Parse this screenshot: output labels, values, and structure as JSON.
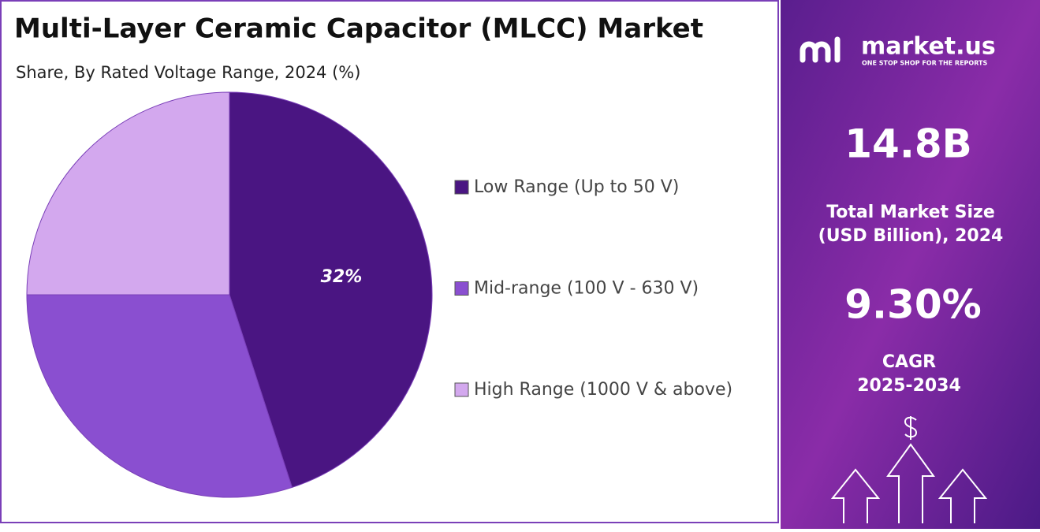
{
  "chart_data": {
    "type": "pie",
    "title": "Multi-Layer Ceramic Capacitor (MLCC) Market",
    "subtitle": "Share, By Rated Voltage Range, 2024 (%)",
    "categories": [
      "Low Range (Up to 50 V)",
      "Mid-range (100 V - 630 V)",
      "High Range (1000 V & above)"
    ],
    "values": [
      45,
      30,
      25
    ],
    "colors": [
      "#4a1582",
      "#8a4fd0",
      "#d3a8ee"
    ],
    "annotation": "32%"
  },
  "panel": {
    "brand": "market.us",
    "tagline": "ONE STOP SHOP FOR THE REPORTS",
    "market_size": "14.8B",
    "market_size_label": [
      "Total Market Size",
      "(USD Billion), 2024"
    ],
    "cagr": "9.30%",
    "cagr_label": [
      "CAGR",
      "2025-2034"
    ]
  }
}
